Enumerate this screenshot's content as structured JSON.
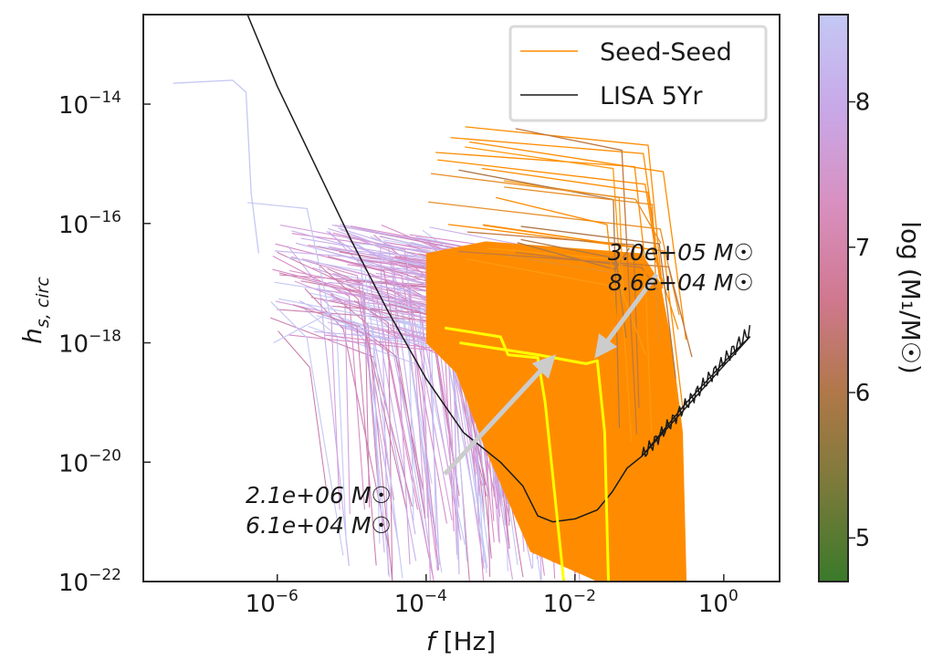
{
  "chart_data": {
    "type": "line",
    "title": "",
    "xlabel": "f [Hz]",
    "ylabel": "h_{s,circ}",
    "x_scale": "log",
    "y_scale": "log",
    "xlim_log10": [
      -7.8,
      0.75
    ],
    "ylim_log10": [
      -22,
      -12.5
    ],
    "x_ticks": [
      {
        "exp": -6,
        "base": "10",
        "sup": "−6"
      },
      {
        "exp": -4,
        "base": "10",
        "sup": "−4"
      },
      {
        "exp": -2,
        "base": "10",
        "sup": "−2"
      },
      {
        "exp": 0,
        "base": "10",
        "sup": "0"
      }
    ],
    "y_ticks": [
      {
        "exp": -14,
        "base": "10",
        "sup": "−14"
      },
      {
        "exp": -16,
        "base": "10",
        "sup": "−16"
      },
      {
        "exp": -18,
        "base": "10",
        "sup": "−18"
      },
      {
        "exp": -20,
        "base": "10",
        "sup": "−20"
      },
      {
        "exp": -22,
        "base": "10",
        "sup": "−22"
      }
    ],
    "legend": {
      "position": "top-right",
      "entries": [
        {
          "label": "Seed-Seed",
          "color": "#ff8c00"
        },
        {
          "label": "LISA 5Yr",
          "color": "#1a1a1a"
        }
      ]
    },
    "colorbar": {
      "label": "log (M₁/M☉)",
      "range": [
        4.7,
        8.6
      ],
      "ticks": [
        5,
        6,
        7,
        8
      ],
      "colors": [
        "#3a7a2a",
        "#7a7a3a",
        "#b07848",
        "#d07890",
        "#d890c0",
        "#c8a8e8",
        "#c4c8f4"
      ]
    },
    "highlight_color": "#ffff00",
    "arrow_color": "#cccccc",
    "annotations": [
      {
        "line1": "3.0e+05 M☉",
        "line2": "8.6e+04 M☉",
        "target": "high-frequency highlighted track knee"
      },
      {
        "line1": "2.1e+06 M☉",
        "line2": "6.1e+04 M☉",
        "target": "low-frequency highlighted track knee"
      }
    ],
    "series": [
      {
        "name": "LISA 5Yr",
        "points_log10": [
          [
            -6.4,
            -12.5
          ],
          [
            -6.0,
            -13.7
          ],
          [
            -5.5,
            -15.0
          ],
          [
            -5.0,
            -16.3
          ],
          [
            -4.5,
            -17.5
          ],
          [
            -4.0,
            -18.6
          ],
          [
            -3.5,
            -19.5
          ],
          [
            -3.0,
            -20.0
          ],
          [
            -2.7,
            -20.4
          ],
          [
            -2.5,
            -20.9
          ],
          [
            -2.3,
            -21.0
          ],
          [
            -2.0,
            -20.95
          ],
          [
            -1.7,
            -20.8
          ],
          [
            -1.5,
            -20.5
          ],
          [
            -1.3,
            -20.1
          ],
          [
            -1.1,
            -19.9
          ],
          [
            -0.9,
            -19.6
          ],
          [
            -0.7,
            -19.3
          ],
          [
            -0.5,
            -19.0
          ],
          [
            -0.2,
            -18.6
          ],
          [
            0.1,
            -18.2
          ],
          [
            0.35,
            -17.9
          ]
        ]
      },
      {
        "name": "Highlighted track 1 (3.0e+05 / 8.6e+04 M☉)",
        "points_log10": [
          [
            -3.55,
            -18.0
          ],
          [
            -2.5,
            -18.2
          ],
          [
            -1.85,
            -18.35
          ],
          [
            -1.7,
            -18.3
          ],
          [
            -1.6,
            -19.5
          ],
          [
            -1.55,
            -22.0
          ]
        ]
      },
      {
        "name": "Highlighted track 2 (2.1e+06 / 6.1e+04 M☉)",
        "points_log10": [
          [
            -3.75,
            -17.75
          ],
          [
            -3.0,
            -17.9
          ],
          [
            -2.9,
            -18.2
          ],
          [
            -2.5,
            -18.25
          ],
          [
            -2.4,
            -19.0
          ],
          [
            -2.15,
            -22.0
          ]
        ]
      }
    ]
  }
}
